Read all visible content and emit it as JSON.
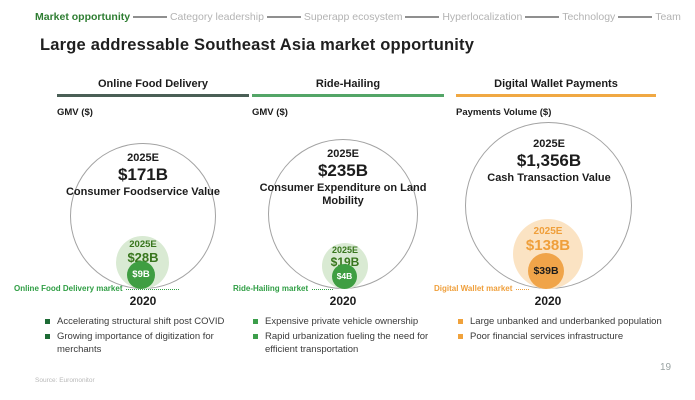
{
  "nav": {
    "items": [
      {
        "label": "Market opportunity",
        "active": true
      },
      {
        "label": "Category leadership",
        "active": false
      },
      {
        "label": "Superapp ecosystem",
        "active": false
      },
      {
        "label": "Hyperlocalization",
        "active": false
      },
      {
        "label": "Technology",
        "active": false
      },
      {
        "label": "Team",
        "active": false
      }
    ]
  },
  "title": "Large addressable Southeast Asia market opportunity",
  "columns": [
    {
      "header": "Online Food Delivery",
      "accent": "#4a5f56",
      "metric_label": "GMV ($)",
      "outer_year": "2025E",
      "outer_value": "$171B",
      "outer_desc": "Consumer Foodservice Value",
      "mid_year": "2025E",
      "mid_value": "$28B",
      "inner_value": "$9B",
      "market_label": "Online Food Delivery market",
      "year_label": "2020",
      "bullets": [
        "Accelerating structural shift post COVID",
        "Growing importance of digitization for merchants"
      ]
    },
    {
      "header": "Ride-Hailing",
      "accent": "#53a567",
      "metric_label": "GMV ($)",
      "outer_year": "2025E",
      "outer_value": "$235B",
      "outer_desc": "Consumer Expenditure on Land Mobility",
      "mid_year": "2025E",
      "mid_value": "$19B",
      "inner_value": "$4B",
      "market_label": "Ride-Hailing market",
      "year_label": "2020",
      "bullets": [
        "Expensive private vehicle ownership",
        "Rapid urbanization fueling the need for efficient transportation"
      ]
    },
    {
      "header": "Digital Wallet Payments",
      "accent": "#f0a843",
      "metric_label": "Payments Volume ($)",
      "outer_year": "2025E",
      "outer_value": "$1,356B",
      "outer_desc": "Cash Transaction Value",
      "mid_year": "2025E",
      "mid_value": "$138B",
      "inner_value": "$39B",
      "market_label": "Digital Wallet market",
      "year_label": "2020",
      "bullets": [
        "Large unbanked and underbanked population",
        "Poor financial services infrastructure"
      ]
    }
  ],
  "footer": {
    "source": "Source: Euromonitor",
    "page": "19"
  },
  "colors": {
    "green_dark": "#2e7d32",
    "green_mid": "#3f9e42",
    "green_light": "#d9ead3",
    "orange": "#f0a449",
    "orange_light": "#fbe3c3",
    "rule_col1": "#4a5f56",
    "rule_col2": "#53a567",
    "rule_col3": "#f0a843"
  },
  "chart_data": [
    {
      "type": "nested_circles",
      "title": "Online Food Delivery",
      "metric": "GMV ($, billions USD)",
      "rings": [
        {
          "label": "2025E Consumer Foodservice Value",
          "value": 171
        },
        {
          "label": "2025E Online Food Delivery market",
          "value": 28
        },
        {
          "label": "2020 Online Food Delivery market",
          "value": 9
        }
      ]
    },
    {
      "type": "nested_circles",
      "title": "Ride-Hailing",
      "metric": "GMV ($, billions USD)",
      "rings": [
        {
          "label": "2025E Consumer Expenditure on Land Mobility",
          "value": 235
        },
        {
          "label": "2025E Ride-Hailing market",
          "value": 19
        },
        {
          "label": "2020 Ride-Hailing market",
          "value": 4
        }
      ]
    },
    {
      "type": "nested_circles",
      "title": "Digital Wallet Payments",
      "metric": "Payments Volume ($, billions USD)",
      "rings": [
        {
          "label": "2025E Cash Transaction Value",
          "value": 1356
        },
        {
          "label": "2025E Digital Wallet market",
          "value": 138
        },
        {
          "label": "2020 Digital Wallet market",
          "value": 39
        }
      ]
    }
  ]
}
